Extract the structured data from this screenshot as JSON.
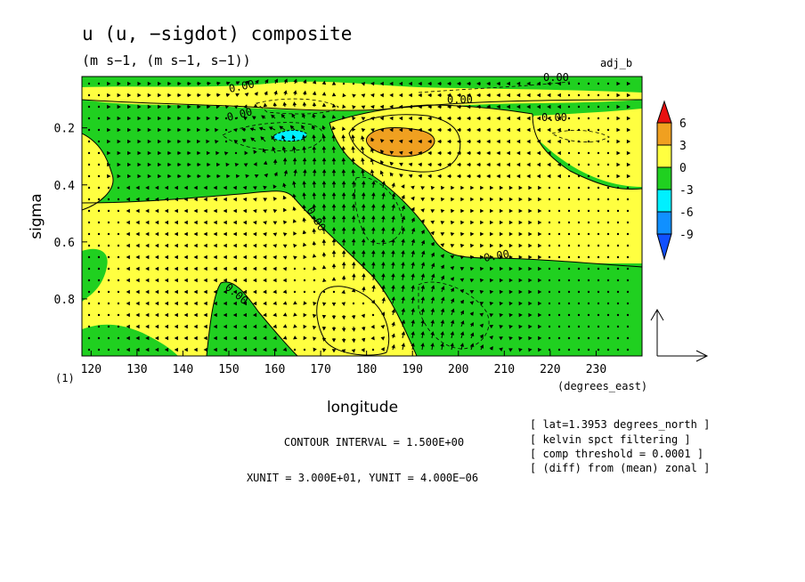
{
  "chart_data": {
    "type": "heatmap",
    "title": "u (u, −sigdot) composite",
    "subtitle": "(m s−1, (m s−1, s−1))",
    "corner_label": "adj_b",
    "xlabel": "longitude",
    "ylabel": "sigma",
    "x_units": "(degrees_east)",
    "y_index_label": "(1)",
    "x_ticks": [
      120,
      130,
      140,
      150,
      160,
      170,
      180,
      190,
      200,
      210,
      220,
      230
    ],
    "y_ticks": [
      0.2,
      0.4,
      0.6,
      0.8
    ],
    "xlim": [
      118,
      240
    ],
    "ylim": [
      1.0,
      0.02
    ],
    "y_reversed": true,
    "colorbar": {
      "levels": [
        6,
        3,
        0,
        -3,
        -6,
        -9
      ],
      "colors": [
        "#e81010",
        "#f0a020",
        "#ffff40",
        "#20d020",
        "#00f0ff",
        "#1090ff",
        "#1050ff"
      ]
    },
    "contour_labels": [
      "0.00",
      "0.00",
      "0.00",
      "0.00",
      "0.00",
      "0.00",
      "0.00",
      "0.00"
    ],
    "contour_interval": "CONTOUR INTERVAL = 1.500E+00",
    "vector_units": "XUNIT = 3.000E+01, YUNIT = 4.000E−06",
    "notes": [
      "[ lat=1.3953 degrees_north ]",
      "[ kelvin spct filtering ]",
      "[ comp threshold = 0.0001 ]",
      "[ (diff) from (mean) zonal ]"
    ],
    "fields": [
      {
        "name": "positive",
        "approx_value": 1.5
      },
      {
        "name": "negative",
        "approx_value": -1.5
      },
      {
        "name": "max_near_185E_sigma0.24",
        "approx_value": 4.5
      },
      {
        "name": "min_near_164E_sigma0.22",
        "approx_value": -4.0
      }
    ]
  },
  "colors": {
    "orange": "#f0a020",
    "yellow": "#ffff40",
    "green": "#20d020",
    "cyan": "#00f0ff",
    "red": "#e81010",
    "blue": "#1090ff"
  }
}
